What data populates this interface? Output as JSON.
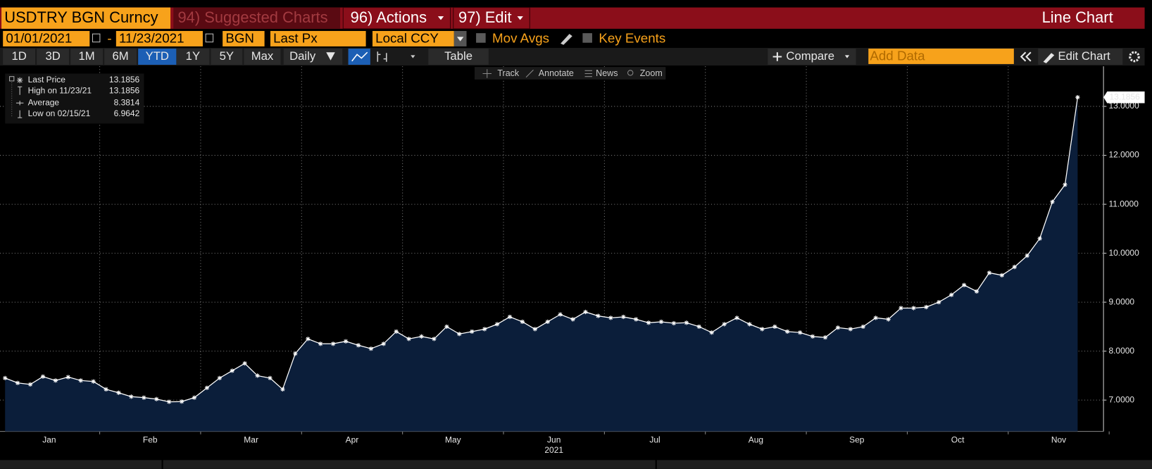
{
  "header": {
    "security": "USDTRY BGN Curncy",
    "menu": [
      "94) Suggested Charts",
      "96) Actions",
      "97) Edit"
    ],
    "chart_kind": "Line Chart"
  },
  "controls": {
    "start_date": "01/01/2021",
    "separator": "-",
    "end_date": "11/23/2021",
    "source": "BGN",
    "field": "Last Px",
    "currency": "Local CCY",
    "options": [
      "Mov Avgs",
      "Key Events"
    ]
  },
  "toolbar": {
    "ranges": [
      "1D",
      "3D",
      "1M",
      "6M",
      "YTD",
      "1Y",
      "5Y",
      "Max"
    ],
    "selected": "YTD",
    "frequency": "Daily",
    "table": "Table",
    "compare": "Compare",
    "add_data": "Add Data",
    "edit_chart": "Edit Chart"
  },
  "tools": [
    "Track",
    "Annotate",
    "News",
    "Zoom"
  ],
  "chart_data": {
    "type": "line",
    "categories": [
      "Jan",
      "Feb",
      "Mar",
      "Apr",
      "May",
      "Jun",
      "Jul",
      "Aug",
      "Sep",
      "Oct",
      "Nov"
    ],
    "x_axis_label": "2021",
    "series": [
      {
        "name": "Last Price",
        "color": "#ffffff",
        "area_color": "#0b1e3a",
        "values": [
          [
            7.45,
            7.35,
            7.32,
            7.48,
            7.4,
            7.47,
            7.4,
            7.38
          ],
          [
            7.22,
            7.15,
            7.07,
            7.05,
            7.02,
            6.9642,
            6.97,
            7.05
          ],
          [
            7.25,
            7.45,
            7.6,
            7.75,
            7.5,
            7.45,
            7.22,
            7.95
          ],
          [
            8.25,
            8.15,
            8.15,
            8.2,
            8.12,
            8.05,
            8.15,
            8.4
          ],
          [
            8.25,
            8.3,
            8.25,
            8.5,
            8.35,
            8.4,
            8.45,
            8.55
          ],
          [
            8.7,
            8.6,
            8.45,
            8.6,
            8.75,
            8.65,
            8.8,
            8.72
          ],
          [
            8.68,
            8.7,
            8.65,
            8.58,
            8.6,
            8.57,
            8.58,
            8.5
          ],
          [
            8.38,
            8.55,
            8.68,
            8.55,
            8.45,
            8.5,
            8.4,
            8.38
          ],
          [
            8.3,
            8.28,
            8.48,
            8.45,
            8.5,
            8.68,
            8.65,
            8.88
          ],
          [
            8.88,
            8.9,
            9.0,
            9.15,
            9.35,
            9.22,
            9.6,
            9.55
          ],
          [
            9.72,
            9.95,
            10.3,
            11.05,
            11.4,
            13.1856
          ]
        ]
      }
    ],
    "stats": [
      {
        "label": "High on 11/23/21",
        "value": "13.1856"
      },
      {
        "label": "Average",
        "value": "8.3814"
      },
      {
        "label": "Low on 02/15/21",
        "value": "6.9642"
      }
    ],
    "ylim": [
      6.36,
      13.82
    ],
    "yticks": [
      {
        "value": 7,
        "label": "7.0000"
      },
      {
        "value": 8,
        "label": "8.0000"
      },
      {
        "value": 9,
        "label": "9.0000"
      },
      {
        "value": 10,
        "label": "10.0000"
      },
      {
        "value": 11,
        "label": "11.0000"
      },
      {
        "value": 12,
        "label": "12.0000"
      },
      {
        "value": 13,
        "label": "13.0000"
      }
    ],
    "grid": true
  }
}
